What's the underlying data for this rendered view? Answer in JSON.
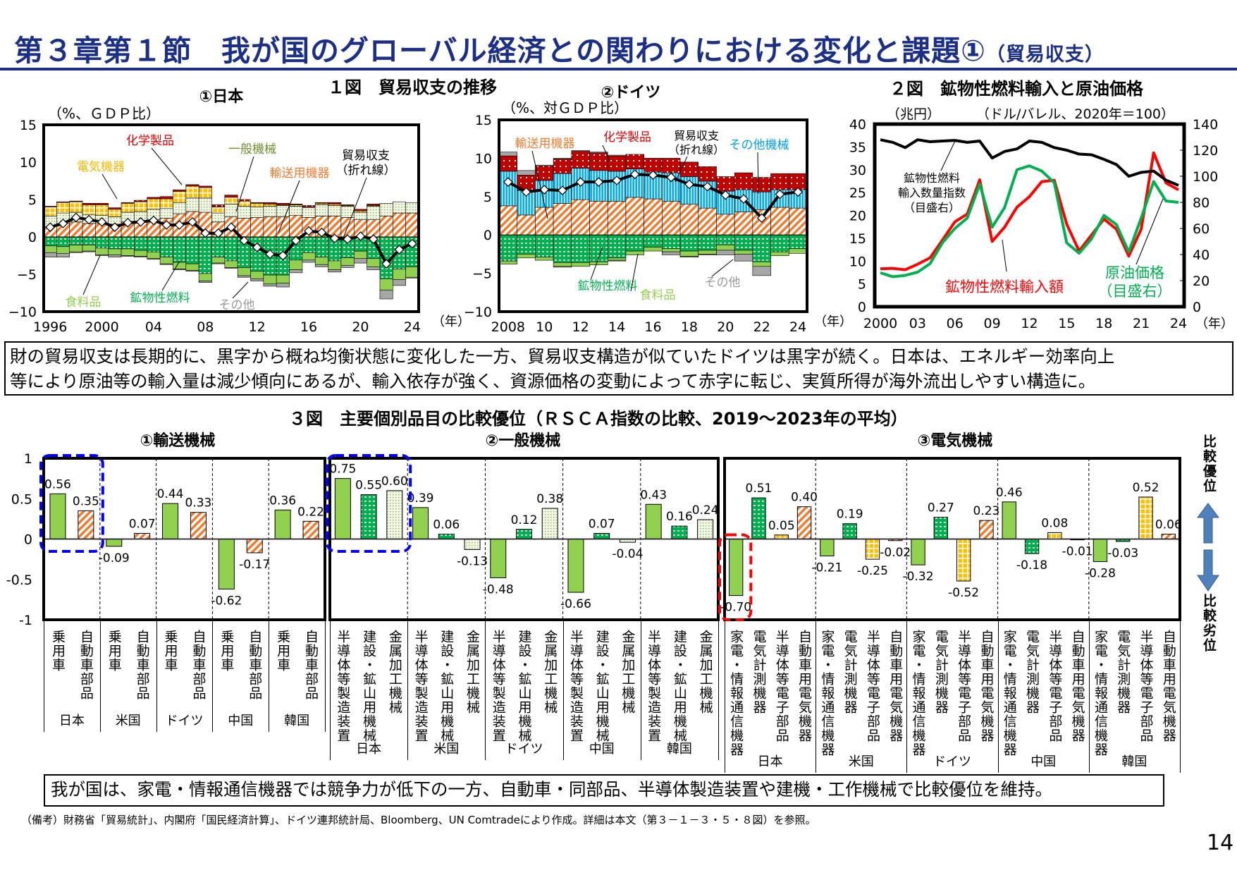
{
  "header": {
    "title": "第３章第１節　我が国のグローバル経済との関わりにおける変化と課題①",
    "subtitle": "（貿易収支）"
  },
  "fig1": {
    "title": "１図　貿易収支の推移"
  },
  "fig2": {
    "title": "２図　鉱物性燃料輸入と原油価格"
  },
  "fig3": {
    "title": "３図　主要個別品目の比較優位（ＲＳＣＡ指数の比較、2019～2023年の平均）",
    "side_top": "比較優位",
    "side_bottom": "比較劣位"
  },
  "summary1": {
    "line1": "財の貿易収支は長期的に、黒字から概ね均衡状態に変化した一方、貿易収支構造が似ていたドイツは黒字が続く。日本は、エネルギー効率向上",
    "line2": "等により原油等の輸入量は減少傾向にあるが、輸入依存が強く、資源価格の変動によって赤字に転じ、実質所得が海外流出しやすい構造に。"
  },
  "summary2": {
    "text": "我が国は、家電・情報通信機器では競争力が低下の一方、自動車・同部品、半導体製造装置や建機・工作機械で比較優位を維持。"
  },
  "note": "（備考）財務省「貿易統計」、内閣府「国民経済計算」、ドイツ連邦統計局、Bloomberg、UN Comtradeにより作成。詳細は本文（第３－１－３・５・８図）を参照。",
  "page_number": "14",
  "chart_data": [
    {
      "type": "bar",
      "stacked": true,
      "title": "①日本",
      "ylabel": "（%、ＧＤＰ比）",
      "xunit": "（年）",
      "ylim": [
        -10,
        15
      ],
      "y_ticks": [
        15,
        10,
        5,
        0,
        -5,
        -10
      ],
      "x": [
        1996,
        1997,
        1998,
        1999,
        2000,
        2001,
        2002,
        2003,
        2004,
        2005,
        2006,
        2007,
        2008,
        2009,
        2010,
        2011,
        2012,
        2013,
        2014,
        2015,
        2016,
        2017,
        2018,
        2019,
        2020,
        2021,
        2022,
        2023,
        2024
      ],
      "x_ticks": [
        {
          "year": 1996,
          "label": "1996"
        },
        {
          "year": 2000,
          "label": "2000"
        },
        {
          "year": 2004,
          "label": "04"
        },
        {
          "year": 2008,
          "label": "08"
        },
        {
          "year": 2012,
          "label": "12"
        },
        {
          "year": 2016,
          "label": "16"
        },
        {
          "year": 2020,
          "label": "20"
        },
        {
          "year": 2024,
          "label": "24"
        }
      ],
      "series": [
        {
          "name": "輸送用機器",
          "color": "#ED7D31",
          "pattern": "hatch",
          "values": [
            1.4,
            1.8,
            2.0,
            1.8,
            1.8,
            1.7,
            2.0,
            2.1,
            2.3,
            2.5,
            3.1,
            3.4,
            3.3,
            2.0,
            2.7,
            2.5,
            2.6,
            2.7,
            2.7,
            2.9,
            2.6,
            2.8,
            2.8,
            2.6,
            2.3,
            2.3,
            2.8,
            3.2,
            3.2
          ]
        },
        {
          "name": "一般機械",
          "color": "#70AD47",
          "pattern": "dot-light",
          "values": [
            1.4,
            1.4,
            1.3,
            1.2,
            1.1,
            1.0,
            1.3,
            1.3,
            1.4,
            1.3,
            1.5,
            1.8,
            1.9,
            1.2,
            1.7,
            1.6,
            1.4,
            1.4,
            1.5,
            1.2,
            1.3,
            1.5,
            1.4,
            1.5,
            1.0,
            1.8,
            1.7,
            1.5,
            1.4
          ]
        },
        {
          "name": "電気機器",
          "color": "#FFC000",
          "pattern": "grid",
          "values": [
            1.2,
            1.4,
            1.4,
            1.3,
            1.4,
            1.0,
            1.2,
            1.3,
            1.4,
            1.3,
            1.5,
            1.6,
            1.4,
            0.8,
            0.9,
            0.7,
            0.5,
            0.3,
            0.1,
            0.2,
            0.1,
            0.2,
            0.2,
            0.1,
            0.2,
            0.1,
            0.0,
            0.0,
            0.0
          ]
        },
        {
          "name": "化学製品",
          "color": "#C00000",
          "pattern": "dot",
          "values": [
            0.1,
            0.1,
            0.1,
            0.2,
            0.2,
            0.2,
            0.1,
            0.2,
            0.2,
            0.3,
            0.2,
            0.2,
            0.2,
            0.3,
            0.3,
            0.2,
            0.1,
            0.2,
            0.2,
            0.1,
            0.2,
            0.1,
            0.2,
            0.1,
            0.2,
            0.2,
            0.0,
            0.0,
            0.0
          ]
        },
        {
          "name": "鉱物性燃料",
          "color": "#00B050",
          "pattern": "dot",
          "values": [
            -1.2,
            -1.3,
            -1.1,
            -1.1,
            -1.5,
            -1.6,
            -1.6,
            -1.8,
            -2.0,
            -2.7,
            -3.4,
            -3.6,
            -4.9,
            -2.7,
            -3.2,
            -4.1,
            -4.6,
            -5.1,
            -5.1,
            -3.1,
            -2.1,
            -2.7,
            -3.2,
            -2.8,
            -1.9,
            -2.9,
            -5.6,
            -4.3,
            -4.0
          ]
        },
        {
          "name": "食料品",
          "color": "#92D050",
          "pattern": "solid",
          "values": [
            -0.9,
            -0.9,
            -0.9,
            -0.8,
            -0.9,
            -0.8,
            -0.9,
            -0.8,
            -0.9,
            -0.9,
            -0.9,
            -0.9,
            -1.0,
            -0.8,
            -0.9,
            -1.1,
            -1.0,
            -1.2,
            -1.1,
            -1.3,
            -1.0,
            -1.0,
            -1.2,
            -1.0,
            -1.0,
            -1.1,
            -1.5,
            -1.4,
            -1.4
          ]
        },
        {
          "name": "その他",
          "color": "#A6A6A6",
          "pattern": "solid",
          "values": [
            -0.6,
            -0.5,
            -0.1,
            -0.1,
            -0.1,
            -0.3,
            -0.1,
            -0.1,
            -0.1,
            -0.1,
            -0.1,
            -0.1,
            -0.2,
            -0.1,
            -0.1,
            -0.2,
            -0.3,
            -0.3,
            -0.5,
            -0.4,
            -0.3,
            -0.3,
            -0.3,
            -0.3,
            -0.6,
            -0.4,
            -1.2,
            -0.8,
            -0.1
          ]
        }
      ],
      "line": {
        "name": "貿易収支（折れ線）",
        "color": "#000000",
        "values": [
          1.3,
          1.8,
          2.6,
          2.3,
          2.0,
          1.3,
          1.9,
          2.0,
          2.2,
          1.6,
          1.6,
          2.0,
          0.5,
          0.5,
          1.3,
          -0.5,
          -1.4,
          -2.3,
          -2.5,
          -0.5,
          0.8,
          0.6,
          -0.2,
          -0.3,
          0.1,
          -0.3,
          -3.6,
          -1.7,
          -0.9
        ]
      },
      "annotations": [
        "化学製品",
        "一般機械",
        "電気機器",
        "輸送用機器",
        "貿易収支",
        "（折れ線）",
        "食料品",
        "鉱物性燃料",
        "その他"
      ]
    },
    {
      "type": "bar",
      "stacked": true,
      "title": "②ドイツ",
      "ylabel": "（%、対ＧＤＰ比）",
      "xunit": "（年）",
      "ylim": [
        -10,
        15
      ],
      "y_ticks": [
        15,
        10,
        5,
        0,
        -5,
        -10
      ],
      "x": [
        2008,
        2009,
        2010,
        2011,
        2012,
        2013,
        2014,
        2015,
        2016,
        2017,
        2018,
        2019,
        2020,
        2021,
        2022,
        2023,
        2024
      ],
      "x_ticks": [
        {
          "year": 2008,
          "label": "2008"
        },
        {
          "year": 2010,
          "label": "10"
        },
        {
          "year": 2012,
          "label": "12"
        },
        {
          "year": 2014,
          "label": "14"
        },
        {
          "year": 2016,
          "label": "16"
        },
        {
          "year": 2018,
          "label": "18"
        },
        {
          "year": 2020,
          "label": "20"
        },
        {
          "year": 2022,
          "label": "22"
        },
        {
          "year": 2024,
          "label": "24"
        }
      ],
      "series": [
        {
          "name": "輸送用機器",
          "color": "#ED7D31",
          "pattern": "hatch",
          "values": [
            3.8,
            2.6,
            3.6,
            4.1,
            4.6,
            4.4,
            4.4,
            4.9,
            4.7,
            4.4,
            4.0,
            3.5,
            2.7,
            3.0,
            3.3,
            3.6,
            3.5
          ]
        },
        {
          "name": "その他機械",
          "color": "#00B0F0",
          "pattern": "stripe",
          "values": [
            4.5,
            3.2,
            3.5,
            3.9,
            4.1,
            4.0,
            3.9,
            3.7,
            3.5,
            3.7,
            3.6,
            3.5,
            3.0,
            2.9,
            2.3,
            2.3,
            2.4
          ]
        },
        {
          "name": "化学製品",
          "color": "#C00000",
          "pattern": "dot",
          "values": [
            2.0,
            2.0,
            1.9,
            1.9,
            2.2,
            2.3,
            2.0,
            1.9,
            1.8,
            1.9,
            1.9,
            1.9,
            1.9,
            2.2,
            1.9,
            2.1,
            2.1
          ]
        },
        {
          "name": "その他",
          "color": "#A6A6A6",
          "pattern": "solid",
          "values": [
            0.5,
            0.6,
            0.1,
            0.1,
            0.1,
            0.1,
            0.1,
            0,
            0,
            0,
            0,
            0,
            0,
            0,
            0,
            0,
            0
          ]
        },
        {
          "name": "鉱物性燃料",
          "color": "#00B050",
          "pattern": "dot",
          "values": [
            -3.4,
            -2.5,
            -2.9,
            -3.6,
            -3.6,
            -3.5,
            -3.0,
            -2.1,
            -1.6,
            -1.8,
            -2.1,
            -2.0,
            -1.3,
            -2.0,
            -3.5,
            -2.2,
            -1.8
          ]
        },
        {
          "name": "食料品",
          "color": "#92D050",
          "pattern": "solid",
          "values": [
            -0.4,
            -0.5,
            -0.4,
            -0.5,
            -0.5,
            -0.4,
            -0.3,
            -0.5,
            -0.5,
            -0.4,
            -0.7,
            -0.5,
            -0.7,
            -0.5,
            -0.6,
            -0.5,
            -0.6
          ]
        },
        {
          "name": "その他",
          "color": "#A6A6A6",
          "pattern": "solid",
          "values": [
            0,
            0,
            0,
            -0.1,
            0,
            0,
            -0.1,
            0,
            0,
            -0.4,
            -0.1,
            -0.1,
            -0.6,
            -0.9,
            -1.2,
            0,
            0
          ]
        }
      ],
      "line": {
        "name": "貿易収支（折れ線）",
        "color": "#000000",
        "values": [
          6.9,
          5.6,
          5.9,
          5.8,
          6.9,
          6.9,
          7.1,
          7.9,
          7.8,
          7.5,
          6.6,
          6.3,
          5.2,
          4.7,
          2.2,
          5.3,
          5.6
        ]
      },
      "annotations": [
        "輸送用機器",
        "化学製品",
        "貿易収支",
        "（折れ線）",
        "その他機械",
        "鉱物性燃料",
        "食料品",
        "その他"
      ]
    },
    {
      "type": "line",
      "title": "２図　鉱物性燃料輸入と原油価格",
      "ylabel_left": "（兆円）",
      "ylabel_right": "（ドル/バレル、2020年＝100）",
      "xunit": "（年）",
      "ylim_left": [
        0,
        40
      ],
      "ylim_right": [
        0,
        140
      ],
      "y_ticks_left": [
        40,
        35,
        30,
        25,
        20,
        15,
        10,
        5,
        0
      ],
      "y_ticks_right": [
        140,
        120,
        100,
        80,
        60,
        40,
        20,
        0
      ],
      "x": [
        2000,
        2001,
        2002,
        2003,
        2004,
        2005,
        2006,
        2007,
        2008,
        2009,
        2010,
        2011,
        2012,
        2013,
        2014,
        2015,
        2016,
        2017,
        2018,
        2019,
        2020,
        2021,
        2022,
        2023,
        2024
      ],
      "x_ticks": [
        {
          "year": 2000,
          "label": "2000"
        },
        {
          "year": 2003,
          "label": "03"
        },
        {
          "year": 2006,
          "label": "06"
        },
        {
          "year": 2009,
          "label": "09"
        },
        {
          "year": 2012,
          "label": "12"
        },
        {
          "year": 2015,
          "label": "15"
        },
        {
          "year": 2018,
          "label": "18"
        },
        {
          "year": 2021,
          "label": "21"
        },
        {
          "year": 2024,
          "label": "24"
        }
      ],
      "series": [
        {
          "name": "鉱物性燃料輸入額",
          "axis": "left",
          "color": "#FF0000",
          "values": [
            8.3,
            8.4,
            8.1,
            9.3,
            10.7,
            14.6,
            18.6,
            20.3,
            27.8,
            14.3,
            17.4,
            21.8,
            24.1,
            27.4,
            27.7,
            18.1,
            12.2,
            15.7,
            19.2,
            17.0,
            11.1,
            17.0,
            33.7,
            27.1,
            25.6
          ]
        },
        {
          "name": "原油価格（目盛右）",
          "axis": "right",
          "color": "#00B050",
          "values": [
            26,
            23,
            24,
            26.5,
            33,
            49,
            60,
            68,
            94,
            61,
            76,
            105,
            108,
            104,
            95,
            49,
            41,
            52,
            70,
            63,
            42,
            68,
            96,
            81,
            80
          ]
        },
        {
          "name": "鉱物性燃料輸入数量指数（目盛右）",
          "axis": "right",
          "color": "#000000",
          "values": [
            128,
            126,
            122,
            128,
            126.5,
            127,
            127.5,
            126,
            127,
            114,
            119,
            121,
            127,
            126,
            122,
            120,
            117,
            116.5,
            113,
            109,
            100,
            103,
            104,
            97,
            93
          ]
        }
      ],
      "annotations": {
        "volume": [
          "鉱物性燃料",
          "輸入数量指数",
          "（目盛右）"
        ],
        "value": "鉱物性燃料輸入額",
        "oil": [
          "原油価格",
          "（目盛右）"
        ]
      }
    },
    {
      "type": "bar",
      "title": "３図　主要個別品目の比較優位（ＲＳＣＡ指数の比較、2019～2023年の平均）",
      "ylim": [
        -1,
        1
      ],
      "y_ticks": [
        {
          "v": 1,
          "label": "1"
        },
        {
          "v": 0.5,
          "label": "0.5"
        },
        {
          "v": 0,
          "label": "0"
        },
        {
          "v": -0.5,
          "label": "-0.5"
        },
        {
          "v": -1,
          "label": "-1"
        }
      ],
      "countries": [
        "日本",
        "米国",
        "ドイツ",
        "中国",
        "韓国"
      ],
      "panels": [
        {
          "title": "①輸送機械",
          "items": [
            {
              "name": "乗用車",
              "color": "#92D050",
              "pattern": "solid"
            },
            {
              "name": "自動車部品",
              "color": "#ED7D31",
              "pattern": "hatch"
            }
          ],
          "values": [
            [
              0.56,
              0.35
            ],
            [
              -0.09,
              0.07
            ],
            [
              0.44,
              0.33
            ],
            [
              -0.62,
              -0.17
            ],
            [
              0.36,
              0.22
            ]
          ],
          "highlight": {
            "country": "日本",
            "color": "#0000FF"
          }
        },
        {
          "title": "②一般機械",
          "items": [
            {
              "name": "半導体等製造装置",
              "color": "#92D050",
              "pattern": "solid"
            },
            {
              "name": "建設・鉱山用機械",
              "color": "#00B050",
              "pattern": "dot"
            },
            {
              "name": "金属加工機械",
              "color": "#70AD47",
              "pattern": "dot-light"
            }
          ],
          "values": [
            [
              0.75,
              0.55,
              0.6
            ],
            [
              0.39,
              0.06,
              -0.13
            ],
            [
              -0.48,
              0.12,
              0.38
            ],
            [
              -0.66,
              0.07,
              -0.04
            ],
            [
              0.43,
              0.16,
              0.24
            ]
          ],
          "highlight": {
            "country": "日本",
            "color": "#0000FF"
          }
        },
        {
          "title": "③電気機械",
          "items": [
            {
              "name": "家電・情報通信機器",
              "color": "#92D050",
              "pattern": "solid"
            },
            {
              "name": "電気計測機器",
              "color": "#00B050",
              "pattern": "dot"
            },
            {
              "name": "半導体等電子部品",
              "color": "#FFC000",
              "pattern": "grid"
            },
            {
              "name": "自動車用電気機器",
              "color": "#ED7D31",
              "pattern": "hatch"
            }
          ],
          "values": [
            [
              -0.7,
              0.51,
              0.05,
              0.4
            ],
            [
              -0.21,
              0.19,
              -0.25,
              -0.02
            ],
            [
              -0.32,
              0.27,
              -0.52,
              0.23
            ],
            [
              0.46,
              -0.18,
              0.08,
              -0.01
            ],
            [
              -0.28,
              -0.03,
              0.52,
              0.06
            ]
          ],
          "highlight": {
            "country": "日本",
            "item": "家電・情報通信機器",
            "color": "#FF0000"
          }
        }
      ]
    }
  ]
}
